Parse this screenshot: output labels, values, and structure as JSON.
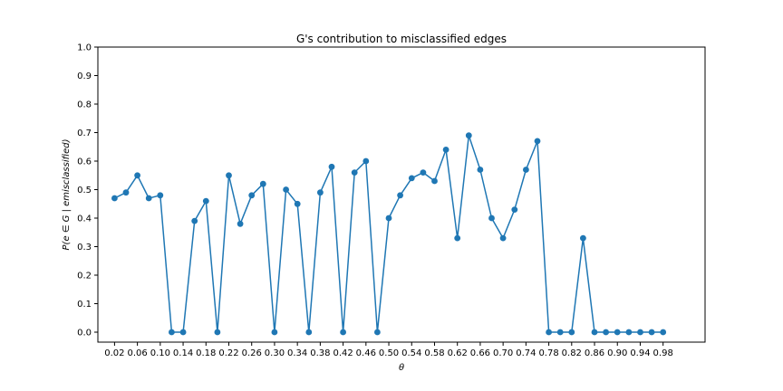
{
  "chart_data": {
    "type": "line",
    "title": "G's contribution to misclassified edges",
    "xlabel": "θ",
    "ylabel": "P(e ∈ G | emisclassified)",
    "ylim": [
      0.0,
      1.0
    ],
    "xlim": [
      0.0,
      1.0
    ],
    "grid": false,
    "marker": "circle",
    "color": "#1f77b4",
    "xticks": [
      "0.02",
      "0.06",
      "0.10",
      "0.14",
      "0.18",
      "0.22",
      "0.26",
      "0.30",
      "0.34",
      "0.38",
      "0.42",
      "0.46",
      "0.50",
      "0.54",
      "0.58",
      "0.62",
      "0.66",
      "0.70",
      "0.74",
      "0.78",
      "0.82",
      "0.86",
      "0.90",
      "0.94",
      "0.98"
    ],
    "yticks": [
      "0.0",
      "0.1",
      "0.2",
      "0.3",
      "0.4",
      "0.5",
      "0.6",
      "0.7",
      "0.8",
      "0.9",
      "1.0"
    ],
    "x": [
      0.02,
      0.04,
      0.06,
      0.08,
      0.1,
      0.12,
      0.14,
      0.16,
      0.18,
      0.2,
      0.22,
      0.24,
      0.26,
      0.28,
      0.3,
      0.32,
      0.34,
      0.36,
      0.38,
      0.4,
      0.42,
      0.44,
      0.46,
      0.48,
      0.5,
      0.52,
      0.54,
      0.56,
      0.58,
      0.6,
      0.62,
      0.64,
      0.66,
      0.68,
      0.7,
      0.72,
      0.74,
      0.76,
      0.78,
      0.8,
      0.82,
      0.84,
      0.86,
      0.88,
      0.9,
      0.92,
      0.94,
      0.96,
      0.98
    ],
    "y": [
      0.47,
      0.49,
      0.55,
      0.47,
      0.48,
      0.0,
      0.0,
      0.39,
      0.46,
      0.0,
      0.55,
      0.38,
      0.48,
      0.52,
      0.0,
      0.5,
      0.45,
      0.0,
      0.49,
      0.58,
      0.0,
      0.56,
      0.6,
      0.0,
      0.4,
      0.48,
      0.54,
      0.56,
      0.53,
      0.64,
      0.33,
      0.69,
      0.57,
      0.4,
      0.33,
      0.43,
      0.57,
      0.67,
      0.0,
      0.0,
      0.0,
      0.33,
      0.0,
      0.0,
      0.0,
      0.0,
      0.0,
      0.0,
      0.0
    ]
  }
}
